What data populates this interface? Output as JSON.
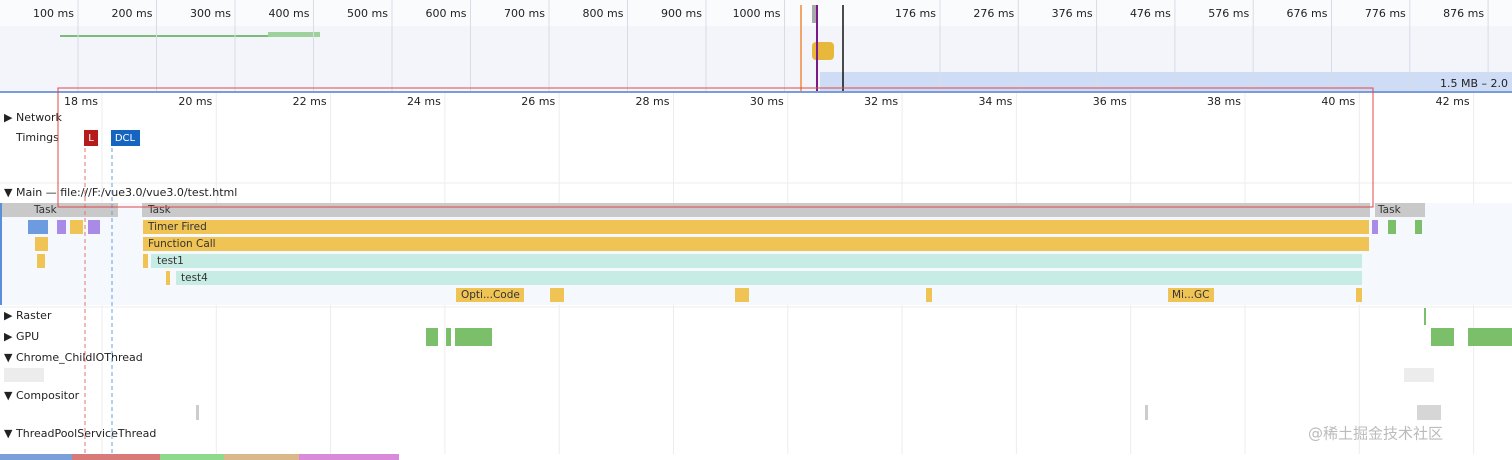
{
  "overview": {
    "ticks": [
      "100 ms",
      "200 ms",
      "300 ms",
      "400 ms",
      "500 ms",
      "600 ms",
      "700 ms",
      "800 ms",
      "900 ms",
      "1000 ms",
      "176 ms",
      "276 ms",
      "376 ms",
      "476 ms",
      "576 ms",
      "676 ms",
      "776 ms",
      "876 ms"
    ],
    "memory_label": "1.5 MB – 2.0"
  },
  "timeline": {
    "ticks": [
      "18 ms",
      "20 ms",
      "22 ms",
      "24 ms",
      "26 ms",
      "28 ms",
      "30 ms",
      "32 ms",
      "34 ms",
      "36 ms",
      "38 ms",
      "40 ms",
      "42 ms"
    ]
  },
  "tracks": {
    "network": "Network",
    "timings": {
      "label": "Timings",
      "markers": [
        "L",
        "DCL"
      ]
    },
    "main": {
      "label": "Main — file:///F:/vue3.0/vue3.0/test.html",
      "events": [
        "Task",
        "Task",
        "Task",
        "Timer Fired",
        "Function Call",
        "test1",
        "test4",
        "Opti...Code",
        "Mi...GC"
      ]
    },
    "raster": "Raster",
    "gpu": "GPU",
    "io": "Chrome_ChildIOThread",
    "compositor": "Compositor",
    "threadpool": "ThreadPoolServiceThread"
  },
  "watermark": "@稀土掘金技术社区"
}
